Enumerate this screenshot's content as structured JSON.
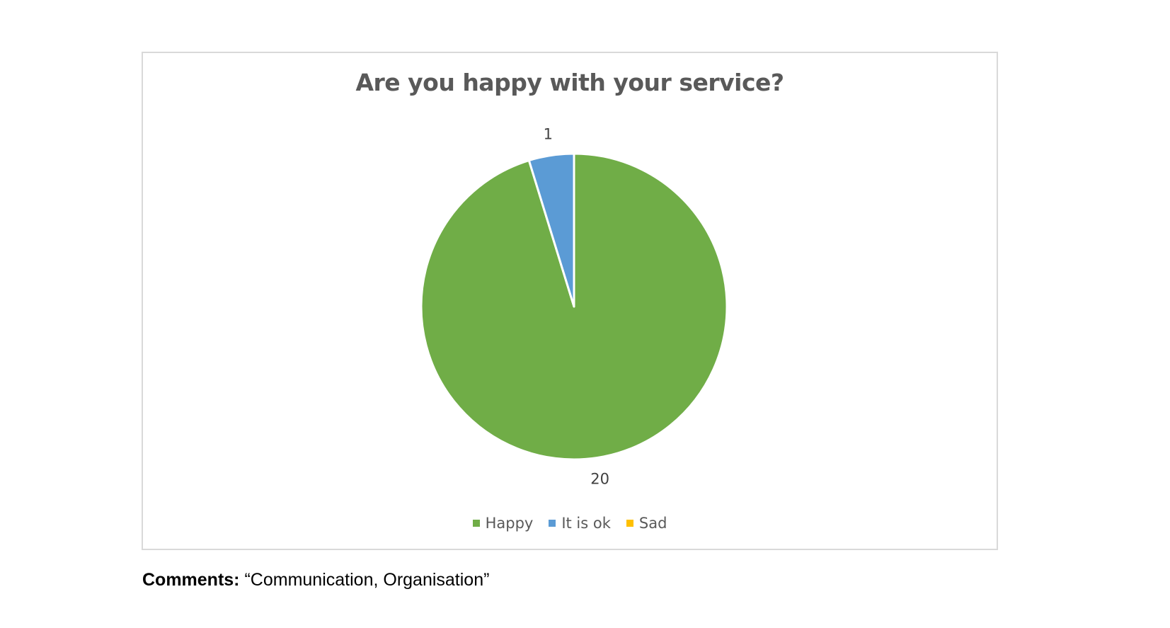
{
  "chart_data": {
    "type": "pie",
    "title": "Are you happy with your service?",
    "categories": [
      "Happy",
      "It is ok",
      "Sad"
    ],
    "values": [
      20,
      1,
      0
    ],
    "data_labels": [
      "20",
      "1",
      ""
    ],
    "colors": [
      "#70ad47",
      "#5b9bd5",
      "#ffc000"
    ],
    "legend_position": "bottom"
  },
  "comments": {
    "label": "Comments:",
    "text": "“Communication, Organisation”"
  }
}
